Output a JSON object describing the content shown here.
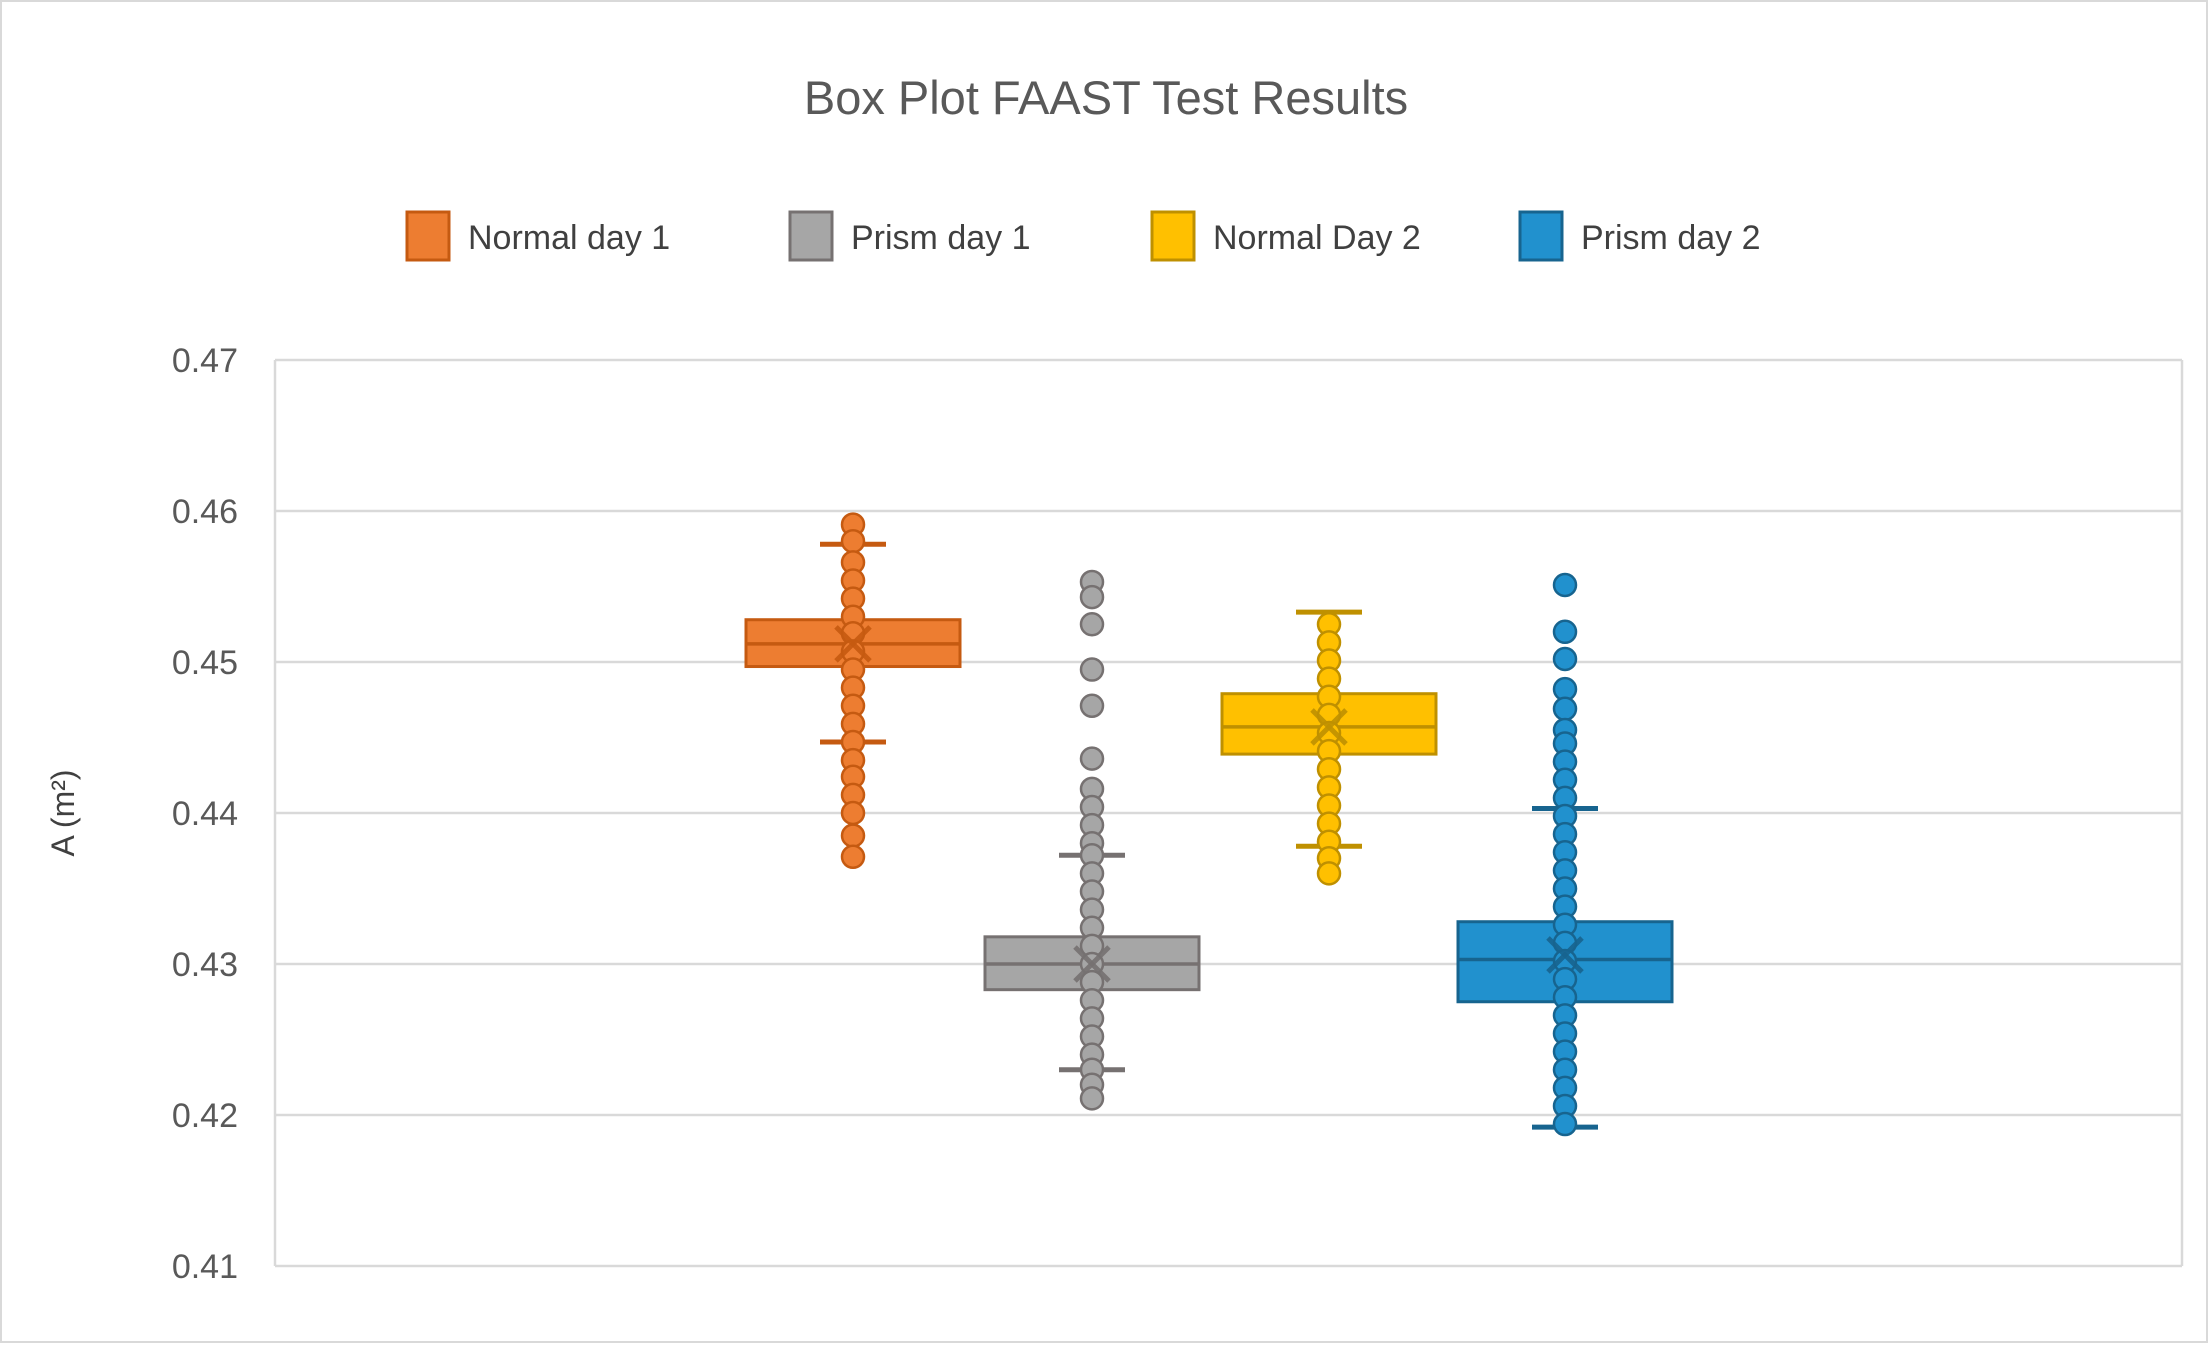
{
  "title": "Box Plot FAAST Test Results",
  "chart_data": {
    "type": "boxplot",
    "title": "Box Plot FAAST Test Results",
    "xlabel": "",
    "ylabel": "A (m²)",
    "ylim": [
      0.41,
      0.47
    ],
    "ytick_step": 0.01,
    "yticks": [
      "0.47",
      "0.46",
      "0.45",
      "0.44",
      "0.43",
      "0.42",
      "0.41"
    ],
    "grid": true,
    "legend_position": "top",
    "gridline_color": "#d9d9d9",
    "plot_border_color": "#d9d9d9",
    "title_color": "#595959",
    "tick_color": "#595959",
    "legend_text_color": "#404040",
    "series": [
      {
        "name": "Normal day 1",
        "fill": "#ED7D31",
        "stroke": "#C55A11",
        "whisker_low": 0.4447,
        "q1": 0.4497,
        "median": 0.4512,
        "mean": 0.4512,
        "q3": 0.4528,
        "whisker_high": 0.4578,
        "points": [
          0.4591,
          0.458,
          0.4566,
          0.4554,
          0.4542,
          0.453,
          0.4519,
          0.4507,
          0.4495,
          0.4483,
          0.4471,
          0.4459,
          0.4447,
          0.4435,
          0.4424,
          0.4412,
          0.44,
          0.4385,
          0.4371
        ]
      },
      {
        "name": "Prism day 1",
        "fill": "#A6A6A6",
        "stroke": "#767171",
        "whisker_low": 0.423,
        "q1": 0.4283,
        "median": 0.43,
        "mean": 0.43,
        "q3": 0.4318,
        "whisker_high": 0.4372,
        "points": [
          0.4553,
          0.4543,
          0.4525,
          0.4495,
          0.4471,
          0.4436,
          0.4416,
          0.4404,
          0.4392,
          0.438,
          0.4372,
          0.436,
          0.4348,
          0.4336,
          0.4324,
          0.4312,
          0.43,
          0.4288,
          0.4276,
          0.4264,
          0.4252,
          0.424,
          0.423,
          0.422,
          0.4211
        ]
      },
      {
        "name": "Normal Day 2",
        "fill": "#FFC000",
        "stroke": "#BF9000",
        "whisker_low": 0.4378,
        "q1": 0.4439,
        "median": 0.4457,
        "mean": 0.4457,
        "q3": 0.4479,
        "whisker_high": 0.4533,
        "points": [
          0.4525,
          0.4513,
          0.4501,
          0.4489,
          0.4477,
          0.4465,
          0.4453,
          0.4441,
          0.4429,
          0.4417,
          0.4405,
          0.4393,
          0.4381,
          0.437,
          0.436
        ]
      },
      {
        "name": "Prism day 2",
        "fill": "#2191CE",
        "stroke": "#17648F",
        "whisker_low": 0.4192,
        "q1": 0.4275,
        "median": 0.4303,
        "mean": 0.4306,
        "q3": 0.4328,
        "whisker_high": 0.4403,
        "points": [
          0.4551,
          0.452,
          0.4502,
          0.4482,
          0.4469,
          0.4455,
          0.4446,
          0.4434,
          0.4422,
          0.441,
          0.4398,
          0.4386,
          0.4374,
          0.4362,
          0.435,
          0.4338,
          0.4326,
          0.4314,
          0.4302,
          0.429,
          0.4278,
          0.4266,
          0.4254,
          0.4242,
          0.423,
          0.4218,
          0.4206,
          0.4194
        ]
      }
    ]
  }
}
